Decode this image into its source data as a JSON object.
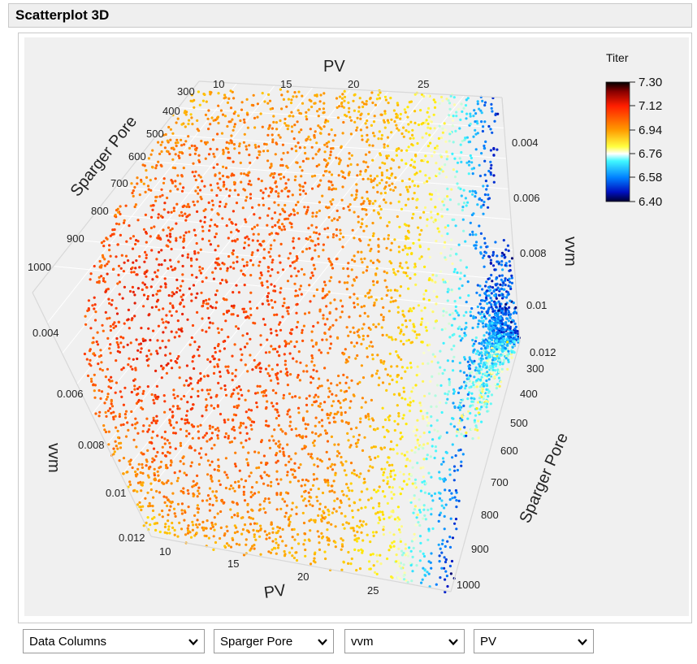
{
  "window": {
    "title": "Scatterplot 3D"
  },
  "legend": {
    "title": "Titer",
    "ticks": [
      "7.30",
      "7.12",
      "6.94",
      "6.76",
      "6.58",
      "6.40"
    ],
    "colors": [
      "#000000",
      "#e00000",
      "#ff6a00",
      "#ffee00",
      "#00eeff",
      "#0050ff",
      "#000040"
    ]
  },
  "axes": {
    "pv_top": {
      "title": "PV",
      "ticks": [
        "10",
        "15",
        "20",
        "25"
      ]
    },
    "pv_bottom": {
      "title": "PV",
      "ticks": [
        "10",
        "15",
        "20",
        "25"
      ]
    },
    "pore_left": {
      "title": "Sparger Pore",
      "ticks": [
        "300",
        "400",
        "500",
        "600",
        "700",
        "800",
        "900",
        "1000"
      ]
    },
    "pore_right": {
      "title": "Sparger Pore",
      "ticks": [
        "300",
        "400",
        "500",
        "600",
        "700",
        "800",
        "900",
        "1000"
      ]
    },
    "vvm_right": {
      "title": "vvm",
      "ticks": [
        "0.004",
        "0.006",
        "0.008",
        "0.01",
        "0.012"
      ]
    },
    "vvm_left": {
      "title": "vvm",
      "ticks": [
        "0.004",
        "0.006",
        "0.008",
        "0.01",
        "0.012"
      ]
    }
  },
  "chart_data": {
    "type": "scatter",
    "title": "",
    "dimensions": [
      "Sparger Pore",
      "vvm",
      "PV"
    ],
    "color_by": "Titer",
    "color_range": [
      6.4,
      7.3
    ],
    "ranges": {
      "Sparger Pore": [
        300,
        1000
      ],
      "vvm": [
        0.004,
        0.012
      ],
      "PV": [
        10,
        25
      ]
    },
    "grid": true,
    "legend_position": "top-right"
  },
  "selectors": [
    {
      "label": "Data Columns"
    },
    {
      "label": "Sparger Pore"
    },
    {
      "label": "vvm"
    },
    {
      "label": "PV"
    }
  ]
}
